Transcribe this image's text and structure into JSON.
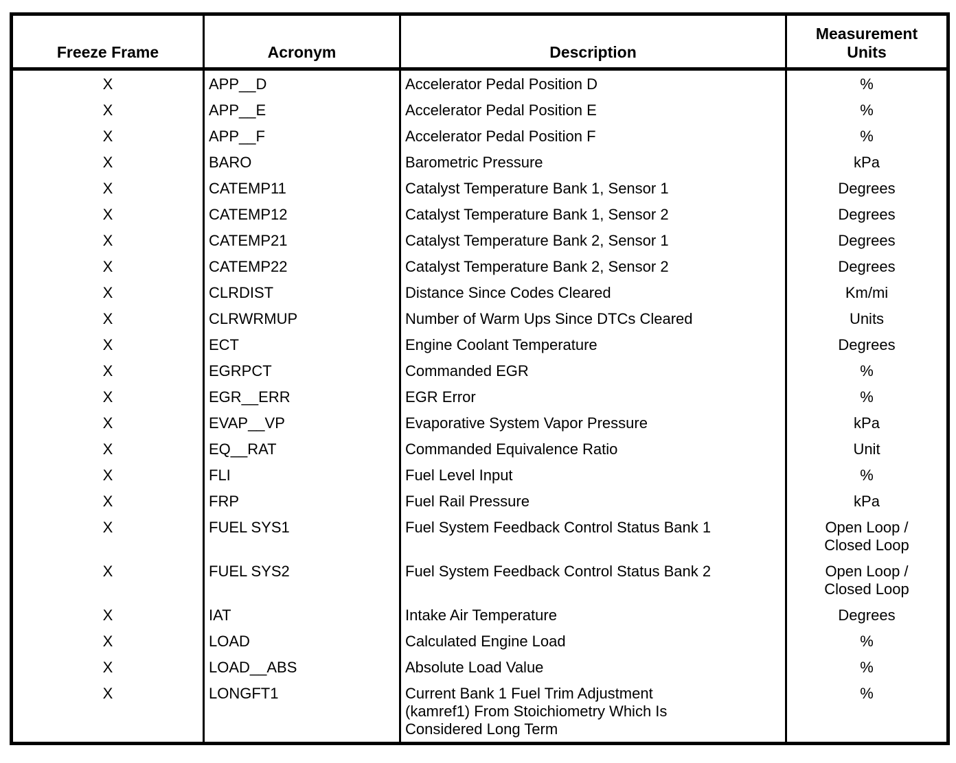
{
  "table": {
    "columns": [
      "Freeze Frame",
      "Acronym",
      "Description",
      "Measurement\nUnits"
    ],
    "rows": [
      {
        "freeze_frame": "X",
        "acronym": "APP__D",
        "description": "Accelerator Pedal Position D",
        "units": "%",
        "lines": 1
      },
      {
        "freeze_frame": "X",
        "acronym": "APP__E",
        "description": "Accelerator Pedal Position E",
        "units": "%",
        "lines": 1
      },
      {
        "freeze_frame": "X",
        "acronym": "APP__F",
        "description": "Accelerator Pedal Position F",
        "units": "%",
        "lines": 1
      },
      {
        "freeze_frame": "X",
        "acronym": "BARO",
        "description": "Barometric Pressure",
        "units": "kPa",
        "lines": 1
      },
      {
        "freeze_frame": "X",
        "acronym": "CATEMP11",
        "description": "Catalyst Temperature Bank 1, Sensor 1",
        "units": "Degrees",
        "lines": 1
      },
      {
        "freeze_frame": "X",
        "acronym": "CATEMP12",
        "description": "Catalyst Temperature Bank 1, Sensor 2",
        "units": "Degrees",
        "lines": 1
      },
      {
        "freeze_frame": "X",
        "acronym": "CATEMP21",
        "description": "Catalyst Temperature Bank 2, Sensor 1",
        "units": "Degrees",
        "lines": 1
      },
      {
        "freeze_frame": "X",
        "acronym": "CATEMP22",
        "description": "Catalyst Temperature Bank 2, Sensor 2",
        "units": "Degrees",
        "lines": 1
      },
      {
        "freeze_frame": "X",
        "acronym": "CLRDIST",
        "description": "Distance Since Codes Cleared",
        "units": "Km/mi",
        "lines": 1
      },
      {
        "freeze_frame": "X",
        "acronym": "CLRWRMUP",
        "description": "Number of Warm Ups Since DTCs Cleared",
        "units": "Units",
        "lines": 1
      },
      {
        "freeze_frame": "X",
        "acronym": "ECT",
        "description": "Engine Coolant Temperature",
        "units": "Degrees",
        "lines": 1
      },
      {
        "freeze_frame": "X",
        "acronym": "EGRPCT",
        "description": "Commanded EGR",
        "units": "%",
        "lines": 1
      },
      {
        "freeze_frame": "X",
        "acronym": "EGR__ERR",
        "description": "EGR Error",
        "units": "%",
        "lines": 1
      },
      {
        "freeze_frame": "X",
        "acronym": "EVAP__VP",
        "description": "Evaporative System Vapor Pressure",
        "units": "kPa",
        "lines": 1
      },
      {
        "freeze_frame": "X",
        "acronym": "EQ__RAT",
        "description": "Commanded Equivalence Ratio",
        "units": "Unit",
        "lines": 1
      },
      {
        "freeze_frame": "X",
        "acronym": "FLI",
        "description": "Fuel Level Input",
        "units": "%",
        "lines": 1
      },
      {
        "freeze_frame": "X",
        "acronym": "FRP",
        "description": "Fuel Rail Pressure",
        "units": "kPa",
        "lines": 1
      },
      {
        "freeze_frame": "X",
        "acronym": "FUEL SYS1",
        "description": "Fuel System Feedback Control Status Bank 1",
        "units": "Open Loop /\nClosed Loop",
        "lines": 2
      },
      {
        "freeze_frame": "X",
        "acronym": "FUEL SYS2",
        "description": "Fuel System Feedback Control Status Bank 2",
        "units": "Open Loop /\nClosed Loop",
        "lines": 2
      },
      {
        "freeze_frame": "X",
        "acronym": "IAT",
        "description": "Intake Air Temperature",
        "units": "Degrees",
        "lines": 1
      },
      {
        "freeze_frame": "X",
        "acronym": "LOAD",
        "description": "Calculated Engine Load",
        "units": "%",
        "lines": 1
      },
      {
        "freeze_frame": "X",
        "acronym": "LOAD__ABS",
        "description": "Absolute Load Value",
        "units": "%",
        "lines": 1
      },
      {
        "freeze_frame": "X",
        "acronym": "LONGFT1",
        "description": "Current Bank 1 Fuel Trim Adjustment\n(kamref1) From Stoichiometry Which Is\nConsidered Long Term",
        "units": "%",
        "lines": 3
      }
    ]
  }
}
